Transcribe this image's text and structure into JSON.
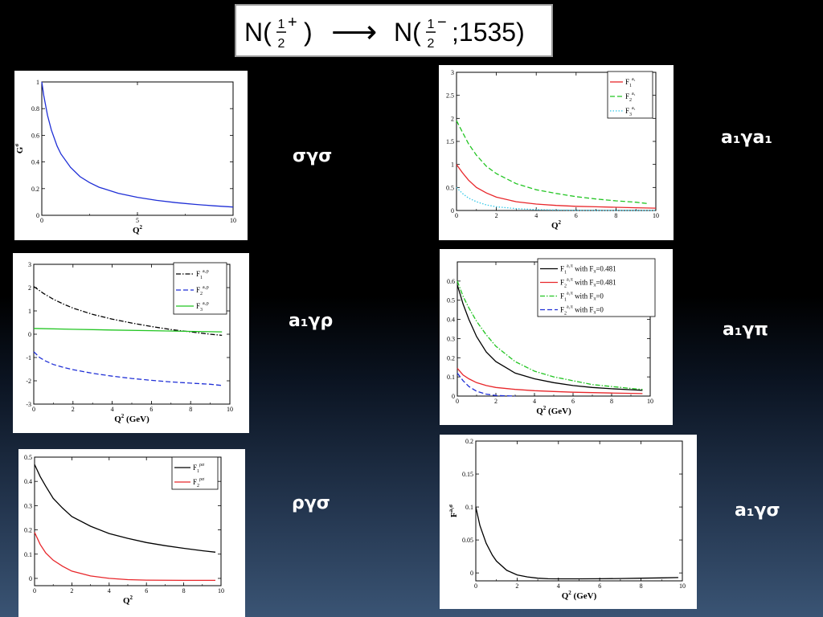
{
  "title": {
    "prefix": "N(",
    "frac1_num": "1",
    "frac1_den": "2",
    "parity1": "+",
    "close1": ")",
    "arrow": "⟶",
    "mid": "N(",
    "frac2_num": "1",
    "frac2_den": "2",
    "parity2": "−",
    "suffix": ";1535)"
  },
  "labels": {
    "sgs": "σγσ",
    "a1ga1": "a₁γa₁",
    "a1grho": "a₁γρ",
    "a1gpi": "a₁γπ",
    "rhogs": "ργσ",
    "a1gs": "a₁γσ"
  },
  "chart_data": [
    {
      "id": "sgs",
      "type": "line",
      "xlabel": "Q",
      "xlabel_sup": "2",
      "ylabel": "G",
      "ylabel_sup": "σ",
      "xlim": [
        0,
        10
      ],
      "ylim": [
        0,
        1
      ],
      "xticks": [
        0,
        5,
        10
      ],
      "yticks": [
        0,
        0.2,
        0.4,
        0.6,
        0.8,
        1
      ],
      "ytick_labels": [
        "0",
        "0.2",
        "0.4",
        "0.6",
        "0.8",
        "1"
      ],
      "series": [
        {
          "color": "#1f2fd6",
          "dash": "",
          "x": [
            0,
            0.1,
            0.3,
            0.5,
            0.8,
            1,
            1.5,
            2,
            2.5,
            3,
            4,
            5,
            6,
            7,
            8,
            9,
            10
          ],
          "y": [
            1.0,
            0.9,
            0.75,
            0.64,
            0.52,
            0.46,
            0.36,
            0.29,
            0.245,
            0.21,
            0.165,
            0.135,
            0.112,
            0.095,
            0.082,
            0.071,
            0.062
          ]
        }
      ]
    },
    {
      "id": "a1ga1",
      "type": "line",
      "xlabel": "Q",
      "xlabel_sup": "2",
      "ylabel": "",
      "ylabel_sup": "",
      "xlim": [
        0,
        10
      ],
      "ylim": [
        0,
        3
      ],
      "xticks": [
        0,
        2,
        4,
        6,
        8,
        10
      ],
      "yticks": [
        0,
        0.5,
        1,
        1.5,
        2,
        2.5,
        3
      ],
      "ytick_labels": [
        "0",
        "0.5",
        "1",
        "1.5",
        "2",
        "2.5",
        "3"
      ],
      "legend": [
        {
          "name": "F",
          "sub": "1",
          "sup": "a₁",
          "color": "#e8262a",
          "dash": ""
        },
        {
          "name": "F",
          "sub": "2",
          "sup": "a₁",
          "color": "#22c522",
          "dash": "6,3"
        },
        {
          "name": "F",
          "sub": "3",
          "sup": "a₁",
          "color": "#33c8e8",
          "dash": "1.5,2"
        }
      ],
      "series": [
        {
          "color": "#e8262a",
          "dash": "",
          "x": [
            0,
            0.3,
            0.6,
            1,
            1.5,
            2,
            3,
            4,
            5,
            6,
            7,
            8,
            9,
            10
          ],
          "y": [
            1.0,
            0.82,
            0.66,
            0.5,
            0.38,
            0.29,
            0.19,
            0.14,
            0.11,
            0.09,
            0.08,
            0.07,
            0.06,
            0.05
          ]
        },
        {
          "color": "#22c522",
          "dash": "6,3",
          "x": [
            0,
            0.3,
            0.6,
            1,
            1.5,
            2,
            3,
            4,
            5,
            6,
            7,
            8,
            9,
            9.6
          ],
          "y": [
            1.95,
            1.7,
            1.45,
            1.2,
            0.96,
            0.8,
            0.58,
            0.45,
            0.37,
            0.3,
            0.25,
            0.21,
            0.18,
            0.15
          ]
        },
        {
          "color": "#33c8e8",
          "dash": "1.5,2",
          "x": [
            0,
            0.3,
            0.6,
            1,
            1.5,
            2,
            3,
            4,
            5,
            6,
            8,
            10
          ],
          "y": [
            0.5,
            0.37,
            0.27,
            0.19,
            0.12,
            0.08,
            0.04,
            0.02,
            0.01,
            0.005,
            0.002,
            0.0
          ]
        }
      ]
    },
    {
      "id": "a1grho",
      "type": "line",
      "xlabel": "Q",
      "xlabel_sup": "2",
      "xlabel_unit": "(GeV)",
      "ylabel": "",
      "ylabel_sup": "",
      "xlim": [
        0,
        10
      ],
      "ylim": [
        -3,
        3
      ],
      "xticks": [
        0,
        2,
        4,
        6,
        8,
        10
      ],
      "yticks": [
        -3,
        -2,
        -1,
        0,
        1,
        2,
        3
      ],
      "ytick_labels": [
        "-3",
        "-2",
        "-1",
        "0",
        "1",
        "2",
        "3"
      ],
      "legend": [
        {
          "name": "F",
          "sub": "1",
          "sup": "a₁ρ",
          "color": "#000000",
          "dash": "6,2,1.5,2"
        },
        {
          "name": "F",
          "sub": "2",
          "sup": "a₁ρ",
          "color": "#1f2fd6",
          "dash": "6,3"
        },
        {
          "name": "F",
          "sub": "3",
          "sup": "a₁ρ",
          "color": "#22c522",
          "dash": ""
        }
      ],
      "series": [
        {
          "color": "#000000",
          "dash": "6,2,1.5,2",
          "x": [
            0,
            0.5,
            1,
            1.5,
            2,
            3,
            4,
            5,
            6,
            7,
            8,
            9,
            9.6
          ],
          "y": [
            2.05,
            1.75,
            1.5,
            1.3,
            1.12,
            0.85,
            0.65,
            0.48,
            0.33,
            0.2,
            0.1,
            0.0,
            -0.05
          ]
        },
        {
          "color": "#1f2fd6",
          "dash": "6,3",
          "x": [
            0,
            0.3,
            0.6,
            1,
            1.5,
            2,
            3,
            4,
            5,
            6,
            7,
            8,
            9,
            9.6
          ],
          "y": [
            -0.75,
            -1.0,
            -1.15,
            -1.3,
            -1.42,
            -1.52,
            -1.68,
            -1.8,
            -1.9,
            -1.98,
            -2.05,
            -2.1,
            -2.15,
            -2.2
          ]
        },
        {
          "color": "#22c522",
          "dash": "",
          "x": [
            0,
            2,
            4,
            6,
            8,
            9.6
          ],
          "y": [
            0.25,
            0.21,
            0.18,
            0.15,
            0.12,
            0.1
          ]
        }
      ]
    },
    {
      "id": "a1gpi",
      "type": "line",
      "xlabel": "Q",
      "xlabel_sup": "2",
      "xlabel_unit": "(GeV)",
      "ylabel": "",
      "ylabel_sup": "",
      "xlim": [
        0,
        10
      ],
      "ylim": [
        0,
        0.7
      ],
      "xticks": [
        0,
        2,
        4,
        6,
        8,
        10
      ],
      "yticks": [
        0,
        0.1,
        0.2,
        0.3,
        0.4,
        0.5,
        0.6
      ],
      "ytick_labels": [
        "0",
        "0.1",
        "0.2",
        "0.3",
        "0.4",
        "0.5",
        "0.6"
      ],
      "legend": [
        {
          "name": "F",
          "sub": "1",
          "sup": "a₁π",
          "tail": " with F",
          "tail_sub": "π",
          "tail_val": "=0.481",
          "color": "#000000",
          "dash": ""
        },
        {
          "name": "F",
          "sub": "2",
          "sup": "a₁π",
          "tail": " with F",
          "tail_sub": "π",
          "tail_val": "=0.481",
          "color": "#e8262a",
          "dash": ""
        },
        {
          "name": "F",
          "sub": "1",
          "sup": "a₁π",
          "tail": " with F",
          "tail_sub": "π",
          "tail_val": "=0",
          "color": "#22c522",
          "dash": "6,2,1.5,2"
        },
        {
          "name": "F",
          "sub": "2",
          "sup": "a₁π",
          "tail": " with F",
          "tail_sub": "π",
          "tail_val": "=0",
          "color": "#1f2fd6",
          "dash": "6,3"
        }
      ],
      "series": [
        {
          "color": "#000000",
          "dash": "",
          "x": [
            0,
            0.3,
            0.6,
            1,
            1.5,
            2,
            3,
            4,
            5,
            6,
            7,
            8,
            9,
            9.6
          ],
          "y": [
            0.58,
            0.48,
            0.4,
            0.31,
            0.23,
            0.18,
            0.12,
            0.09,
            0.07,
            0.055,
            0.045,
            0.038,
            0.033,
            0.03
          ]
        },
        {
          "color": "#e8262a",
          "dash": "",
          "x": [
            0,
            0.3,
            0.6,
            1,
            1.5,
            2,
            3,
            4,
            5,
            6,
            8,
            9.6
          ],
          "y": [
            0.145,
            0.11,
            0.09,
            0.07,
            0.055,
            0.045,
            0.035,
            0.028,
            0.024,
            0.02,
            0.016,
            0.013
          ]
        },
        {
          "color": "#22c522",
          "dash": "6,2,1.5,2",
          "x": [
            0,
            0.3,
            0.6,
            1,
            1.5,
            2,
            3,
            4,
            5,
            6,
            7,
            8,
            9,
            9.6
          ],
          "y": [
            0.6,
            0.52,
            0.46,
            0.39,
            0.32,
            0.26,
            0.18,
            0.13,
            0.1,
            0.08,
            0.06,
            0.05,
            0.04,
            0.035
          ]
        },
        {
          "color": "#1f2fd6",
          "dash": "6,3",
          "x": [
            0,
            0.3,
            0.6,
            1,
            1.5,
            2,
            3
          ],
          "y": [
            0.12,
            0.08,
            0.05,
            0.025,
            0.01,
            0.003,
            0.0
          ]
        }
      ]
    },
    {
      "id": "rhogs",
      "type": "line",
      "xlabel": "Q",
      "xlabel_sup": "2",
      "ylabel": "",
      "ylabel_sup": "",
      "xlim": [
        0,
        10
      ],
      "ylim": [
        -0.03,
        0.5
      ],
      "xticks": [
        0,
        2,
        4,
        6,
        8,
        10
      ],
      "yticks": [
        0,
        0.1,
        0.2,
        0.3,
        0.4,
        0.5
      ],
      "ytick_labels": [
        "0",
        "0.1",
        "0.2",
        "0.3",
        "0.4",
        "0.5"
      ],
      "legend": [
        {
          "name": "F",
          "sub": "1",
          "sup": "ρσ",
          "color": "#000000",
          "dash": ""
        },
        {
          "name": "F",
          "sub": "2",
          "sup": "ρσ",
          "color": "#e8262a",
          "dash": ""
        }
      ],
      "series": [
        {
          "color": "#000000",
          "dash": "",
          "x": [
            0,
            0.3,
            0.6,
            1,
            1.5,
            2,
            3,
            4,
            5,
            6,
            7,
            8,
            9,
            9.7
          ],
          "y": [
            0.47,
            0.42,
            0.38,
            0.33,
            0.29,
            0.255,
            0.215,
            0.185,
            0.165,
            0.148,
            0.135,
            0.124,
            0.114,
            0.108
          ]
        },
        {
          "color": "#e8262a",
          "dash": "",
          "x": [
            0,
            0.3,
            0.6,
            1,
            1.5,
            2,
            3,
            4,
            5,
            6,
            8,
            9.7
          ],
          "y": [
            0.19,
            0.14,
            0.105,
            0.075,
            0.05,
            0.03,
            0.01,
            0.0,
            -0.005,
            -0.007,
            -0.008,
            -0.008
          ]
        }
      ]
    },
    {
      "id": "a1gs",
      "type": "line",
      "xlabel": "Q",
      "xlabel_sup": "2",
      "xlabel_unit": "(GeV)",
      "ylabel": "F",
      "ylabel_sup": "a₁σ",
      "xlim": [
        0,
        10
      ],
      "ylim": [
        -0.012,
        0.2
      ],
      "xticks": [
        0,
        2,
        4,
        6,
        8,
        10
      ],
      "yticks": [
        0,
        0.05,
        0.1,
        0.15,
        0.2
      ],
      "ytick_labels": [
        "0",
        "0.05",
        "0.1",
        "0.15",
        "0.2"
      ],
      "series": [
        {
          "color": "#000000",
          "dash": "",
          "x": [
            0,
            0.2,
            0.5,
            0.8,
            1,
            1.5,
            2,
            2.5,
            3,
            3.5,
            4,
            5,
            6,
            7,
            8,
            9,
            9.8
          ],
          "y": [
            0.1,
            0.072,
            0.045,
            0.027,
            0.018,
            0.004,
            -0.003,
            -0.006,
            -0.008,
            -0.0088,
            -0.009,
            -0.009,
            -0.0088,
            -0.0085,
            -0.008,
            -0.0075,
            -0.007
          ]
        }
      ]
    }
  ]
}
